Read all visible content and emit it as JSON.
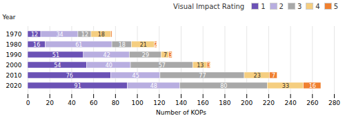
{
  "chart_data": {
    "type": "bar",
    "orientation": "horizontal",
    "stacked": true,
    "data_labels": true,
    "grid": true,
    "legend": "upper right",
    "legend_title": "Visual Impact Rating",
    "xlabel": "Number of KOPs",
    "ylabel": "Year",
    "categories": [
      "1970",
      "1980",
      "1990",
      "2000",
      "2010",
      "2020"
    ],
    "series": [
      {
        "name": "1",
        "color": "#6b52b5",
        "values": [
          12,
          16,
          51,
          54,
          76,
          91
        ]
      },
      {
        "name": "2",
        "color": "#b8aee0",
        "values": [
          34,
          61,
          42,
          40,
          45,
          48
        ]
      },
      {
        "name": "3",
        "color": "#a8a8a8",
        "values": [
          12,
          18,
          29,
          57,
          77,
          80
        ]
      },
      {
        "name": "4",
        "color": "#f5ce80",
        "values": [
          18,
          21,
          7,
          13,
          23,
          33
        ]
      },
      {
        "name": "5",
        "color": "#f08030",
        "values": [
          1,
          2,
          3,
          3,
          7,
          16
        ],
        "value_labels": [
          null,
          "2",
          "3",
          "3",
          "7",
          "16"
        ]
      }
    ],
    "xlim": [
      0,
      280
    ],
    "xticks": [
      0,
      20,
      40,
      60,
      80,
      100,
      120,
      140,
      160,
      180,
      200,
      220,
      240,
      260,
      280
    ]
  }
}
